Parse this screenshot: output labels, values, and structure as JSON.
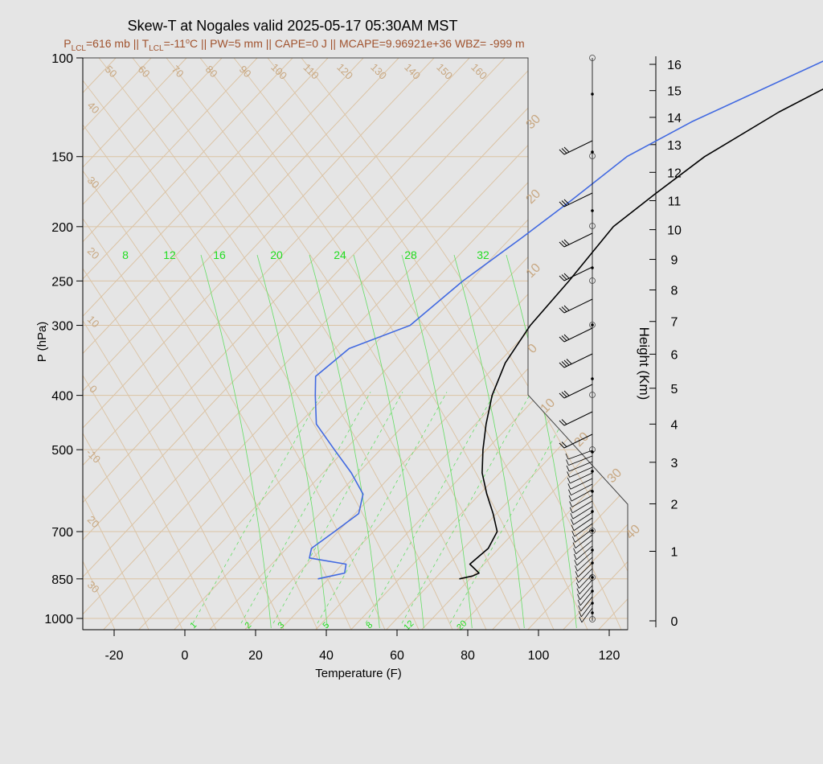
{
  "chart_data": {
    "type": "skew-t",
    "title": "Skew-T at Nogales valid 2025-05-17 05:30AM MST",
    "subtitle": {
      "plcl_prefix": "P",
      "plcl_sub": "LCL",
      "plcl_value": "=616 mb || T",
      "tlcl_sub": "LCL",
      "tlcl_value": "=-11",
      "deg": "o",
      "rest": "C || PW=5 mm || CAPE=0 J || MCAPE=9.96921e+36 WBZ= -999 m"
    },
    "xlabel": "Temperature (F)",
    "ylabel": "P (hPa)",
    "y2label": "Height (Km)",
    "x_ticks": [
      "-20",
      "0",
      "20",
      "40",
      "60",
      "80",
      "100",
      "120"
    ],
    "y_ticks": [
      "100",
      "150",
      "200",
      "250",
      "300",
      "400",
      "500",
      "700",
      "850",
      "1000"
    ],
    "y2_ticks": [
      "0",
      "1",
      "2",
      "3",
      "4",
      "5",
      "6",
      "7",
      "8",
      "9",
      "10",
      "11",
      "12",
      "13",
      "14",
      "15",
      "16"
    ],
    "isotherm_labels_top": [
      "50",
      "60",
      "70",
      "80",
      "90",
      "100",
      "110",
      "120",
      "130",
      "140",
      "150",
      "160"
    ],
    "isotherm_labels_left": [
      "40",
      "30",
      "20",
      "10",
      "0",
      "-10",
      "20",
      "30"
    ],
    "isotherm_labels_right": [
      "30",
      "20",
      "10",
      "0",
      "10",
      "20",
      "30",
      "40"
    ],
    "mixing_ratio_labels_top": [
      "8",
      "12",
      "16",
      "20",
      "24",
      "28",
      "32"
    ],
    "mixing_ratio_labels_bottom": [
      "1",
      "2",
      "3",
      "5",
      "8",
      "12",
      "20"
    ],
    "temperature_profile": {
      "color": "#000000",
      "p": [
        850,
        840,
        830,
        800,
        750,
        700,
        650,
        600,
        550,
        500,
        450,
        400,
        350,
        300,
        250,
        200,
        175,
        150,
        125,
        100
      ],
      "t": [
        67,
        70,
        71,
        66,
        67,
        65,
        59,
        52,
        45,
        39,
        33,
        27,
        22,
        19,
        18,
        16,
        19,
        23,
        32,
        47
      ]
    },
    "dewpoint_profile": {
      "color": "#4169e1",
      "p": [
        850,
        840,
        830,
        800,
        780,
        750,
        700,
        650,
        600,
        550,
        500,
        450,
        400,
        370,
        330,
        300,
        250,
        210,
        180,
        150,
        130,
        100
      ],
      "t": [
        27,
        30,
        33,
        31,
        19,
        17,
        19,
        21,
        17,
        8,
        -3,
        -15,
        -23,
        -28,
        -26,
        -15,
        -12,
        -7,
        -3,
        1,
        10,
        32
      ]
    }
  }
}
